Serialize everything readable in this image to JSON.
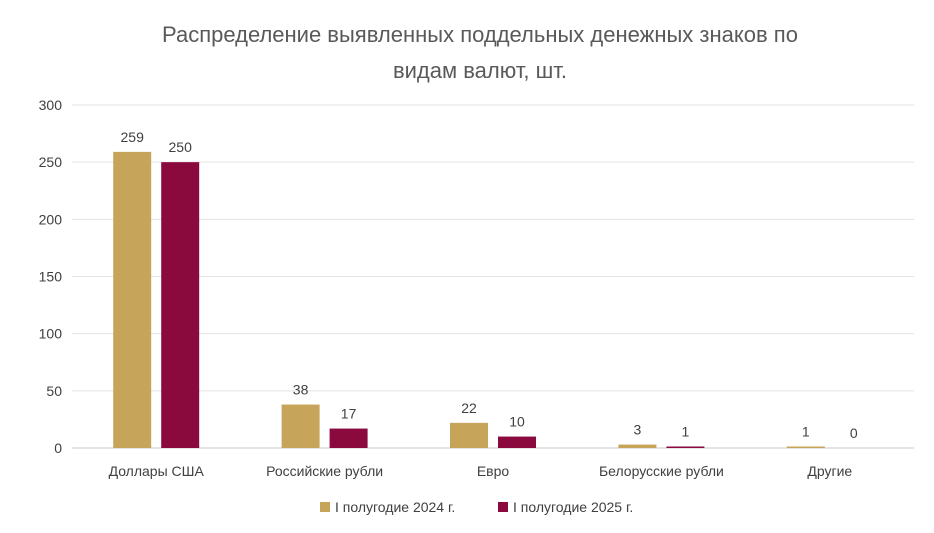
{
  "chart_data": {
    "type": "bar",
    "title_lines": [
      "Распределение выявленных поддельных денежных знаков по",
      "видам валют, шт."
    ],
    "categories": [
      "Доллары США",
      "Российские рубли",
      "Евро",
      "Белорусские рубли",
      "Другие"
    ],
    "series": [
      {
        "name": "I полугодие 2024 г.",
        "color": "#C6A55A",
        "values": [
          259,
          38,
          22,
          3,
          1
        ]
      },
      {
        "name": "I полугодие 2025 г.",
        "color": "#8B0A3E",
        "values": [
          250,
          17,
          10,
          1,
          0
        ]
      }
    ],
    "ylim": [
      0,
      300
    ],
    "yticks": [
      0,
      50,
      100,
      150,
      200,
      250,
      300
    ],
    "grid": true,
    "legend_position": "bottom"
  }
}
